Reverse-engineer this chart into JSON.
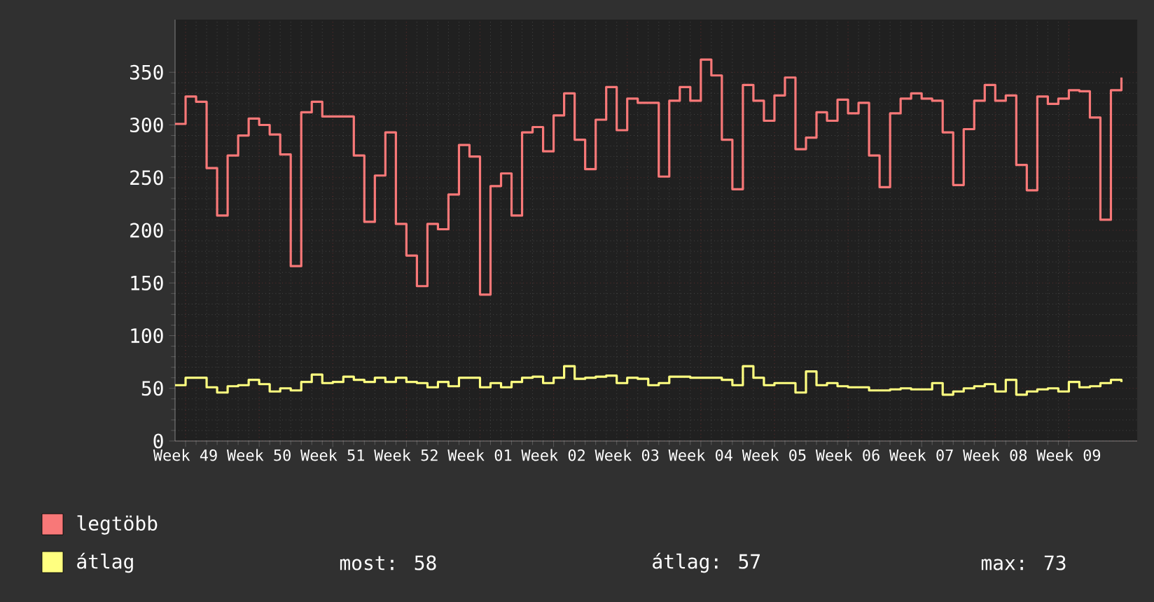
{
  "chart_data": {
    "type": "step",
    "categories": [
      null,
      "Week 49",
      null,
      null,
      null,
      null,
      null,
      null,
      "Week 50",
      null,
      null,
      null,
      null,
      null,
      null,
      "Week 51",
      null,
      null,
      null,
      null,
      null,
      null,
      "Week 52",
      null,
      null,
      null,
      null,
      null,
      null,
      "Week 01",
      null,
      null,
      null,
      null,
      null,
      null,
      "Week 02",
      null,
      null,
      null,
      null,
      null,
      null,
      "Week 03",
      null,
      null,
      null,
      null,
      null,
      null,
      "Week 04",
      null,
      null,
      null,
      null,
      null,
      null,
      "Week 05",
      null,
      null,
      null,
      null,
      null,
      null,
      "Week 06",
      null,
      null,
      null,
      null,
      null,
      null,
      "Week 07",
      null,
      null,
      null,
      null,
      null,
      null,
      "Week 08",
      null,
      null,
      null,
      null,
      null,
      null,
      "Week 09",
      null,
      null,
      null,
      null,
      null
    ],
    "series": [
      {
        "name": "legtöbb",
        "color": "#f87878",
        "values": [
          301,
          327,
          322,
          259,
          214,
          271,
          290,
          306,
          300,
          291,
          272,
          166,
          312,
          322,
          308,
          308,
          308,
          271,
          208,
          252,
          293,
          206,
          176,
          147,
          206,
          201,
          234,
          281,
          270,
          139,
          242,
          254,
          214,
          293,
          298,
          275,
          309,
          330,
          286,
          258,
          305,
          336,
          295,
          325,
          321,
          321,
          251,
          323,
          336,
          323,
          362,
          347,
          286,
          239,
          338,
          323,
          304,
          328,
          345,
          277,
          288,
          312,
          304,
          324,
          311,
          321,
          271,
          241,
          311,
          325,
          330,
          325,
          323,
          293,
          243,
          296,
          323,
          338,
          323,
          328,
          262,
          238,
          327,
          320,
          325,
          333,
          332,
          307,
          210,
          333,
          345
        ]
      },
      {
        "name": "átlag",
        "color": "#ffff80",
        "values": [
          53,
          60,
          60,
          51,
          46,
          52,
          53,
          58,
          54,
          47,
          50,
          48,
          56,
          63,
          55,
          56,
          61,
          58,
          56,
          60,
          56,
          60,
          56,
          55,
          51,
          56,
          52,
          60,
          60,
          51,
          55,
          51,
          56,
          60,
          61,
          55,
          60,
          71,
          59,
          60,
          61,
          62,
          55,
          60,
          59,
          53,
          55,
          61,
          61,
          60,
          60,
          60,
          58,
          53,
          71,
          60,
          53,
          55,
          55,
          46,
          66,
          53,
          55,
          52,
          51,
          51,
          48,
          48,
          49,
          50,
          49,
          49,
          55,
          44,
          47,
          50,
          52,
          54,
          47,
          58,
          44,
          47,
          49,
          50,
          47,
          56,
          51,
          52,
          55,
          58,
          56
        ]
      }
    ],
    "ylim": [
      0,
      400
    ],
    "yticks": [
      0,
      50,
      100,
      150,
      200,
      250,
      300,
      350
    ],
    "grid": true,
    "legend": "bottom left",
    "annotations": [
      "most: 58",
      "átlag: 57",
      "max: 73"
    ]
  }
}
